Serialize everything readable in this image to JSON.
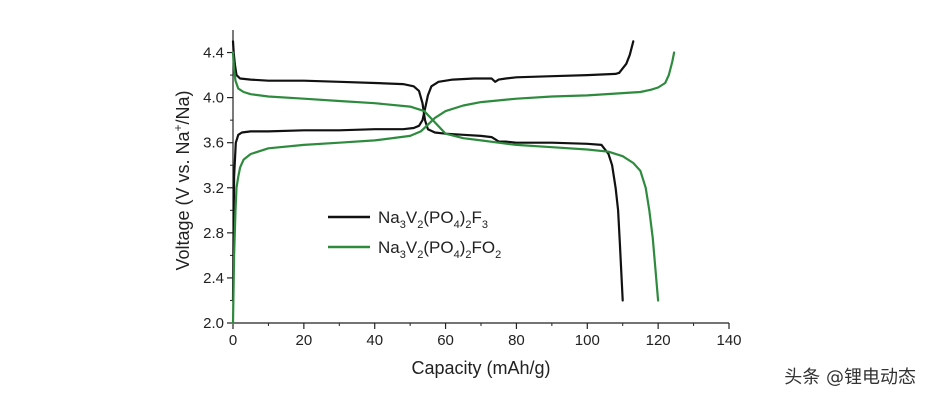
{
  "chart_data": {
    "type": "line",
    "xlabel": "Capacity (mAh/g)",
    "ylabel_parts": [
      "Voltage (V vs. Na",
      "+",
      "/Na)"
    ],
    "xlim": [
      0,
      140
    ],
    "ylim": [
      2.0,
      4.6
    ],
    "xticks": [
      "0",
      "20",
      "40",
      "60",
      "80",
      "100",
      "120",
      "140"
    ],
    "yticks": [
      "2.0",
      "2.4",
      "2.8",
      "3.2",
      "3.6",
      "4.0",
      "4.4"
    ],
    "grid": false,
    "legend_position": "center-left",
    "series": [
      {
        "name": "Na3V2(PO4)2F3",
        "legend_parts": [
          {
            "t": "Na",
            "s": false
          },
          {
            "t": "3",
            "s": true
          },
          {
            "t": "V",
            "s": false
          },
          {
            "t": "2",
            "s": true
          },
          {
            "t": "(PO",
            "s": false
          },
          {
            "t": "4",
            "s": true
          },
          {
            "t": ")",
            "s": false
          },
          {
            "t": "2",
            "s": true
          },
          {
            "t": "F",
            "s": false
          },
          {
            "t": "3",
            "s": true
          }
        ],
        "color": "#111111",
        "charge": {
          "x": [
            0,
            0.3,
            0.8,
            1.5,
            2.5,
            5,
            10,
            20,
            30,
            40,
            48,
            51,
            52.5,
            53.5,
            54.2,
            55,
            56,
            58,
            62,
            68,
            73,
            74,
            75,
            77,
            80,
            90,
            100,
            108,
            109
          ],
          "y": [
            2.2,
            3.3,
            3.6,
            3.67,
            3.69,
            3.7,
            3.7,
            3.71,
            3.71,
            3.72,
            3.72,
            3.73,
            3.75,
            3.8,
            3.9,
            4.02,
            4.1,
            4.14,
            4.16,
            4.17,
            4.17,
            4.14,
            4.16,
            4.17,
            4.18,
            4.19,
            4.2,
            4.21,
            4.22
          ]
        },
        "charge_end": {
          "x": [
            109,
            111,
            112,
            113
          ],
          "y": [
            4.22,
            4.3,
            4.38,
            4.5
          ]
        },
        "discharge": {
          "x": [
            0,
            0.2,
            0.5,
            1,
            2,
            5,
            10,
            20,
            30,
            40,
            48,
            51,
            52.5,
            53.5,
            54.2,
            55,
            57,
            60,
            65,
            70,
            73,
            74,
            75,
            77,
            80,
            90,
            100,
            104,
            106,
            107,
            108,
            108.7,
            109.2,
            109.6,
            110
          ],
          "y": [
            4.5,
            4.4,
            4.3,
            4.2,
            4.17,
            4.16,
            4.15,
            4.15,
            4.14,
            4.13,
            4.12,
            4.1,
            4.06,
            3.95,
            3.8,
            3.72,
            3.69,
            3.68,
            3.67,
            3.66,
            3.65,
            3.63,
            3.61,
            3.61,
            3.6,
            3.6,
            3.59,
            3.58,
            3.5,
            3.4,
            3.2,
            3.0,
            2.7,
            2.45,
            2.2
          ]
        }
      },
      {
        "name": "Na3V2(PO4)2FO2",
        "legend_parts": [
          {
            "t": "Na",
            "s": false
          },
          {
            "t": "3",
            "s": true
          },
          {
            "t": "V",
            "s": false
          },
          {
            "t": "2",
            "s": true
          },
          {
            "t": "(PO",
            "s": false
          },
          {
            "t": "4",
            "s": true
          },
          {
            "t": ")",
            "s": false
          },
          {
            "t": "2",
            "s": true
          },
          {
            "t": "FO",
            "s": false
          },
          {
            "t": "2",
            "s": true
          }
        ],
        "color": "#2e8b3e",
        "charge": {
          "x": [
            0,
            0.3,
            0.7,
            1,
            1.5,
            2,
            3,
            5,
            10,
            20,
            30,
            40,
            50,
            53,
            55,
            57,
            60,
            65,
            70,
            80,
            90,
            100,
            110,
            115,
            118,
            120,
            122,
            123,
            124,
            124.5
          ],
          "y": [
            2.0,
            2.6,
            3.0,
            3.2,
            3.3,
            3.38,
            3.45,
            3.5,
            3.55,
            3.58,
            3.6,
            3.62,
            3.66,
            3.7,
            3.76,
            3.82,
            3.88,
            3.93,
            3.96,
            3.99,
            4.01,
            4.02,
            4.04,
            4.05,
            4.07,
            4.09,
            4.13,
            4.2,
            4.32,
            4.4
          ]
        },
        "discharge": {
          "x": [
            0,
            0.3,
            0.7,
            1.5,
            3,
            5,
            10,
            20,
            30,
            40,
            50,
            54,
            57,
            60,
            65,
            70,
            75,
            80,
            90,
            100,
            106,
            110,
            113,
            115,
            116.5,
            117.5,
            118.5,
            119.3,
            120
          ],
          "y": [
            4.4,
            4.25,
            4.15,
            4.08,
            4.05,
            4.03,
            4.01,
            3.99,
            3.97,
            3.95,
            3.92,
            3.88,
            3.78,
            3.68,
            3.64,
            3.62,
            3.6,
            3.58,
            3.56,
            3.54,
            3.52,
            3.48,
            3.42,
            3.35,
            3.2,
            3.0,
            2.75,
            2.45,
            2.2
          ]
        }
      }
    ]
  },
  "watermark": "头条 @锂电动态"
}
